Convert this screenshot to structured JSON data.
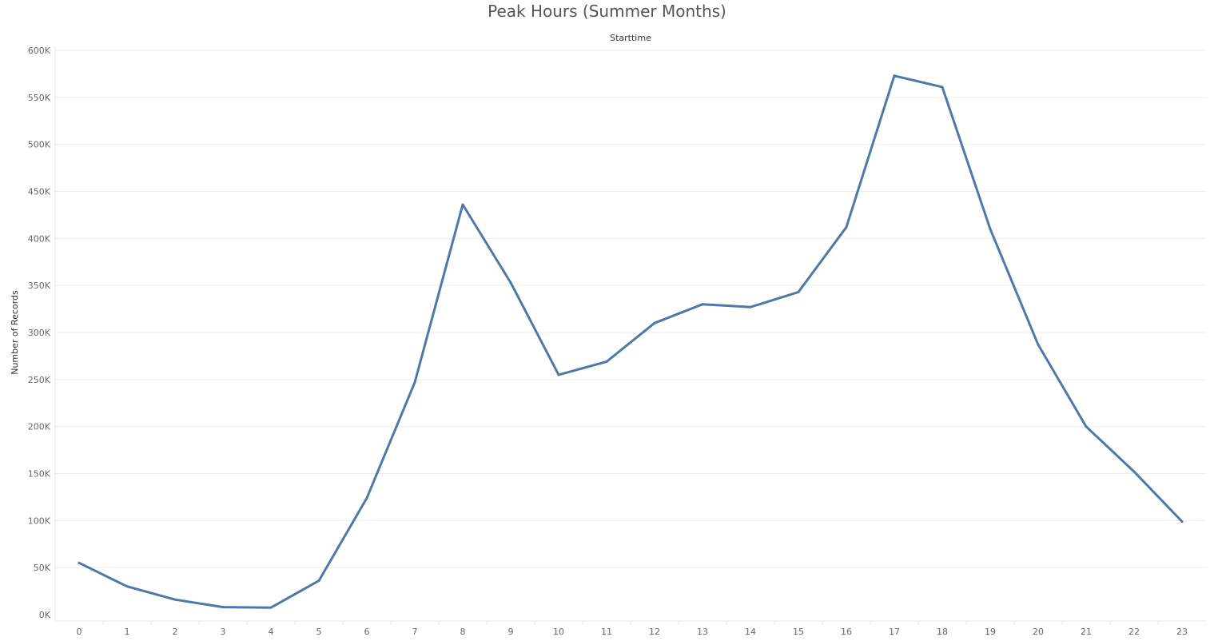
{
  "chart_data": {
    "type": "line",
    "title": "Peak Hours (Summer Months)",
    "xlabel": "Starttime",
    "ylabel": "Number of Records",
    "categories": [
      "0",
      "1",
      "2",
      "3",
      "4",
      "5",
      "6",
      "7",
      "8",
      "9",
      "10",
      "11",
      "12",
      "13",
      "14",
      "15",
      "16",
      "17",
      "18",
      "19",
      "20",
      "21",
      "22",
      "23"
    ],
    "series": [
      {
        "values": [
          55000,
          30000,
          16000,
          8000,
          7500,
          36000,
          124000,
          247000,
          436000,
          353000,
          255000,
          269000,
          310000,
          330000,
          327000,
          343000,
          412000,
          573000,
          561000,
          410000,
          287000,
          200000,
          152000,
          99000
        ],
        "color": "#4e79a7"
      }
    ],
    "ylim": [
      0,
      600000
    ],
    "yticks": [
      0,
      50000,
      100000,
      150000,
      200000,
      250000,
      300000,
      350000,
      400000,
      450000,
      500000,
      550000,
      600000
    ],
    "ytick_labels": [
      "0K",
      "50K",
      "100K",
      "150K",
      "200K",
      "250K",
      "300K",
      "350K",
      "400K",
      "450K",
      "500K",
      "550K",
      "600K"
    ],
    "grid": true,
    "legend": "none"
  }
}
